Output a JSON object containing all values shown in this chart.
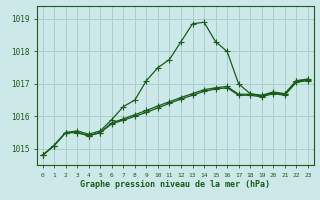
{
  "title": "Graphe pression niveau de la mer (hPa)",
  "bg_color": "#cce8e8",
  "plot_bg_color": "#cce8e8",
  "grid_color": "#aacece",
  "line_color": "#1a5c1a",
  "border_color": "#1a5c1a",
  "text_color": "#1a5c1a",
  "xlim": [
    -0.5,
    23.5
  ],
  "ylim": [
    1014.5,
    1019.4
  ],
  "yticks": [
    1015,
    1016,
    1017,
    1018,
    1019
  ],
  "xticks": [
    0,
    1,
    2,
    3,
    4,
    5,
    6,
    7,
    8,
    9,
    10,
    11,
    12,
    13,
    14,
    15,
    16,
    17,
    18,
    19,
    20,
    21,
    22,
    23
  ],
  "series1": [
    [
      0,
      1014.8
    ],
    [
      1,
      1015.1
    ],
    [
      2,
      1015.5
    ],
    [
      3,
      1015.55
    ],
    [
      4,
      1015.45
    ],
    [
      5,
      1015.55
    ],
    [
      6,
      1015.9
    ],
    [
      7,
      1016.3
    ],
    [
      8,
      1016.5
    ],
    [
      9,
      1017.1
    ],
    [
      10,
      1017.5
    ],
    [
      11,
      1017.75
    ],
    [
      12,
      1018.3
    ],
    [
      13,
      1018.85
    ],
    [
      14,
      1018.9
    ],
    [
      15,
      1018.3
    ],
    [
      16,
      1018.0
    ],
    [
      17,
      1017.0
    ],
    [
      18,
      1016.7
    ],
    [
      19,
      1016.65
    ],
    [
      20,
      1016.75
    ],
    [
      21,
      1016.7
    ],
    [
      22,
      1017.1
    ],
    [
      23,
      1017.15
    ]
  ],
  "series2": [
    [
      0,
      1014.8
    ],
    [
      1,
      1015.1
    ],
    [
      2,
      1015.5
    ],
    [
      3,
      1015.5
    ],
    [
      4,
      1015.4
    ],
    [
      5,
      1015.5
    ],
    [
      6,
      1015.8
    ],
    [
      7,
      1015.92
    ],
    [
      8,
      1016.05
    ],
    [
      9,
      1016.18
    ],
    [
      10,
      1016.32
    ],
    [
      11,
      1016.45
    ],
    [
      12,
      1016.58
    ],
    [
      13,
      1016.7
    ],
    [
      14,
      1016.82
    ],
    [
      15,
      1016.88
    ],
    [
      16,
      1016.92
    ],
    [
      17,
      1016.68
    ],
    [
      18,
      1016.68
    ],
    [
      19,
      1016.63
    ],
    [
      20,
      1016.73
    ],
    [
      21,
      1016.68
    ],
    [
      22,
      1017.08
    ],
    [
      23,
      1017.13
    ]
  ],
  "series3": [
    [
      0,
      1014.8
    ],
    [
      1,
      1015.1
    ],
    [
      2,
      1015.5
    ],
    [
      3,
      1015.5
    ],
    [
      4,
      1015.4
    ],
    [
      5,
      1015.5
    ],
    [
      6,
      1015.77
    ],
    [
      7,
      1015.88
    ],
    [
      8,
      1016.0
    ],
    [
      9,
      1016.12
    ],
    [
      10,
      1016.26
    ],
    [
      11,
      1016.4
    ],
    [
      12,
      1016.53
    ],
    [
      13,
      1016.65
    ],
    [
      14,
      1016.77
    ],
    [
      15,
      1016.84
    ],
    [
      16,
      1016.88
    ],
    [
      17,
      1016.65
    ],
    [
      18,
      1016.65
    ],
    [
      19,
      1016.6
    ],
    [
      20,
      1016.7
    ],
    [
      21,
      1016.65
    ],
    [
      22,
      1017.05
    ],
    [
      23,
      1017.1
    ]
  ]
}
